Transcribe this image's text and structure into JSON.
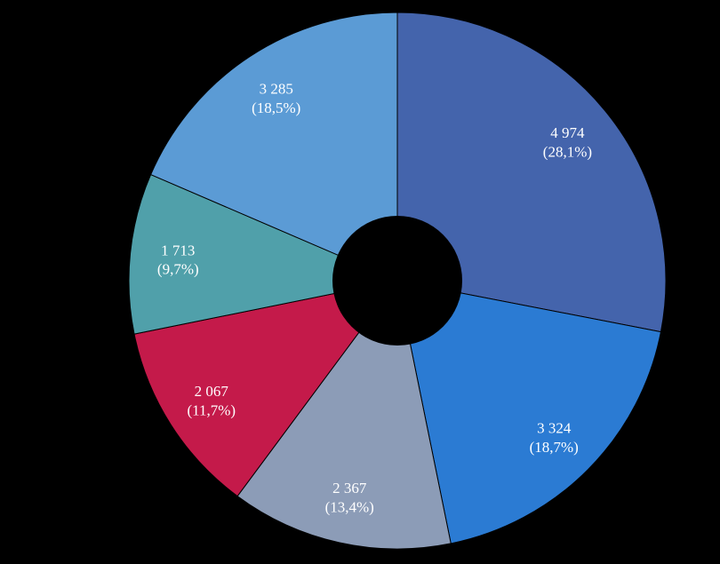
{
  "page": {
    "background_color": "#000000",
    "label_text_color": "#ffffff"
  },
  "chart_data": {
    "type": "pie",
    "subtype": "donut",
    "title": "",
    "legend_position": "none",
    "start_angle_deg": 0,
    "direction": "clockwise",
    "total": 17730,
    "number_format": "space thousands separator, comma decimal",
    "segments": [
      {
        "value": 4974,
        "percent": 28.1,
        "value_label": "4 974",
        "pct_label": "(28,1%)",
        "color": "#4464ac"
      },
      {
        "value": 3324,
        "percent": 18.7,
        "value_label": "3 324",
        "pct_label": "(18,7%)",
        "color": "#2b7bd3"
      },
      {
        "value": 2367,
        "percent": 13.4,
        "value_label": "2 367",
        "pct_label": "(13,4%)",
        "color": "#8c9cb7"
      },
      {
        "value": 2067,
        "percent": 11.7,
        "value_label": "2 067",
        "pct_label": "(11,7%)",
        "color": "#c41a4a"
      },
      {
        "value": 1713,
        "percent": 9.7,
        "value_label": "1 713",
        "pct_label": "(9,7%)",
        "color": "#50a0aa"
      },
      {
        "value": 3285,
        "percent": 18.5,
        "value_label": "3 285",
        "pct_label": "(18,5%)",
        "color": "#5b9bd5"
      }
    ],
    "label_color": "#ffffff",
    "slice_border_color": "#000000"
  }
}
